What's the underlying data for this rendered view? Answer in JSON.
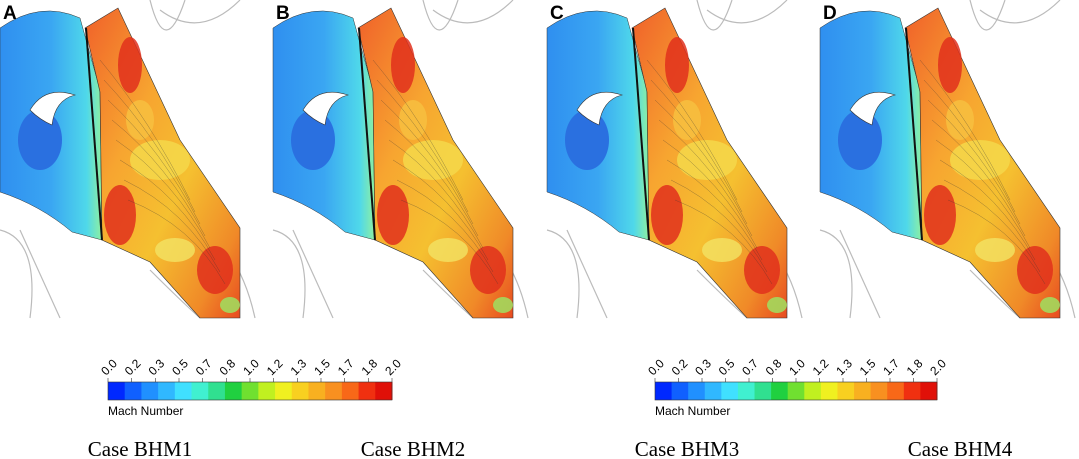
{
  "panels": [
    {
      "label": "A",
      "caption": "Case BHM1"
    },
    {
      "label": "B",
      "caption": "Case BHM2"
    },
    {
      "label": "C",
      "caption": "Case BHM3"
    },
    {
      "label": "D",
      "caption": "Case BHM4"
    }
  ],
  "colorbars": [
    {
      "title": "Mach Number",
      "ticks": [
        "0.0",
        "0.2",
        "0.3",
        "0.5",
        "0.7",
        "0.8",
        "1.0",
        "1.2",
        "1.3",
        "1.5",
        "1.7",
        "1.8",
        "2.0"
      ]
    },
    {
      "title": "Mach Number",
      "ticks": [
        "0.0",
        "0.2",
        "0.3",
        "0.5",
        "0.7",
        "0.8",
        "1.0",
        "1.2",
        "1.3",
        "1.5",
        "1.7",
        "1.8",
        "2.0"
      ]
    }
  ]
}
